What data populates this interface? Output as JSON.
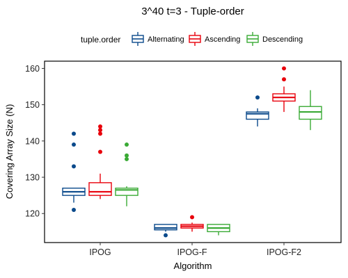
{
  "chart_data": {
    "type": "box",
    "title": "3^40 t=3 - Tuple-order",
    "xlabel": "Algorithm",
    "ylabel": "Covering Array Size (N)",
    "ylim": [
      112,
      162
    ],
    "yticks": [
      120,
      130,
      140,
      150,
      160
    ],
    "categories": [
      "IPOG",
      "IPOG-F",
      "IPOG-F2"
    ],
    "legend": {
      "title": "tuple.order",
      "position": "top"
    },
    "grid": false,
    "series": [
      {
        "name": "Alternating",
        "color": "#0b4a8b",
        "boxes": [
          {
            "whisker_low": 123,
            "q1": 125,
            "median": 126,
            "q3": 127,
            "whisker_high": 127,
            "outliers": [
              121,
              133,
              139,
              142
            ]
          },
          {
            "whisker_low": 115,
            "q1": 115.5,
            "median": 116,
            "q3": 117,
            "whisker_high": 117,
            "outliers": [
              114
            ]
          },
          {
            "whisker_low": 144,
            "q1": 146,
            "median": 147.5,
            "q3": 148,
            "whisker_high": 149,
            "outliers": [
              152
            ]
          }
        ]
      },
      {
        "name": "Ascending",
        "color": "#e8000b",
        "boxes": [
          {
            "whisker_low": 124,
            "q1": 125,
            "median": 126,
            "q3": 128.5,
            "whisker_high": 131,
            "outliers": [
              137,
              142,
              143,
              144
            ]
          },
          {
            "whisker_low": 115,
            "q1": 116,
            "median": 116.5,
            "q3": 117,
            "whisker_high": 117.5,
            "outliers": [
              119
            ]
          },
          {
            "whisker_low": 148,
            "q1": 151,
            "median": 152,
            "q3": 153,
            "whisker_high": 155,
            "outliers": [
              157,
              160
            ]
          }
        ]
      },
      {
        "name": "Descending",
        "color": "#3aaa35",
        "boxes": [
          {
            "whisker_low": 122,
            "q1": 125,
            "median": 126.5,
            "q3": 127,
            "whisker_high": 127.5,
            "outliers": [
              135,
              136,
              139
            ]
          },
          {
            "whisker_low": 114,
            "q1": 115,
            "median": 116,
            "q3": 117,
            "whisker_high": 117,
            "outliers": []
          },
          {
            "whisker_low": 143,
            "q1": 146,
            "median": 148,
            "q3": 149.5,
            "whisker_high": 154,
            "outliers": []
          }
        ]
      }
    ]
  }
}
